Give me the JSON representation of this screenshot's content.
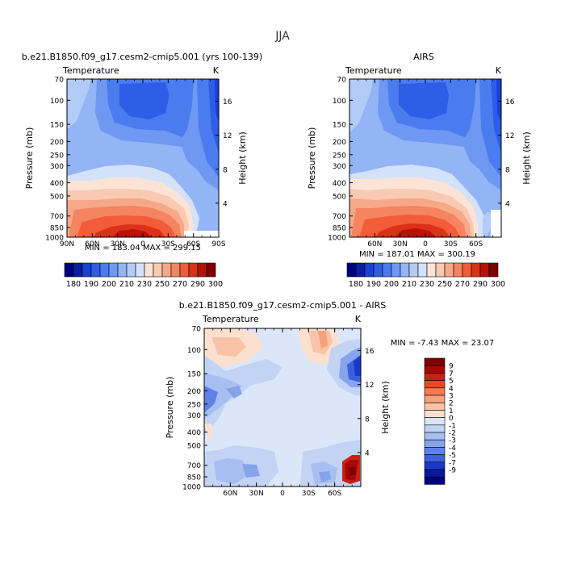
{
  "figure_title": "JJA",
  "chart_data": [
    {
      "type": "heatmap",
      "id": "model",
      "title": "b.e21.B1850.f09_g17.cesm2-cmip5.001 (yrs 100-139)",
      "left_label": "Temperature",
      "right_label": "K",
      "ylabel": "Pressure (mb)",
      "ylabel_right": "Height (km)",
      "xticks": [
        "90N",
        "60N",
        "30N",
        "0",
        "30S",
        "60S",
        "90S"
      ],
      "yticks": [
        "70",
        "100",
        "150",
        "200",
        "250",
        "300",
        "400",
        "500",
        "700",
        "850",
        "1000"
      ],
      "height_ticks": [
        "16",
        "12",
        "8",
        "4"
      ],
      "min_max_text": "MIN = 183.04   MAX = 299.15",
      "x_range": [
        90,
        -90
      ],
      "pressure_range_mb": [
        1000,
        70
      ],
      "colorbar_labels": [
        "180",
        "190",
        "200",
        "210",
        "230",
        "250",
        "270",
        "290",
        "300"
      ]
    },
    {
      "type": "heatmap",
      "id": "obs",
      "title": "AIRS",
      "left_label": "Temperature",
      "right_label": "K",
      "ylabel": "Pressure (mb)",
      "ylabel_right": "Height (km)",
      "xticks": [
        "60N",
        "30N",
        "0",
        "30S",
        "60S"
      ],
      "yticks": [
        "70",
        "100",
        "150",
        "200",
        "250",
        "300",
        "400",
        "500",
        "700",
        "850",
        "1000"
      ],
      "height_ticks": [
        "16",
        "12",
        "8",
        "4"
      ],
      "min_max_text": "MIN = 187.01   MAX = 300.19",
      "x_range": [
        90,
        -90
      ],
      "pressure_range_mb": [
        1000,
        70
      ],
      "colorbar_labels": [
        "180",
        "190",
        "200",
        "210",
        "230",
        "250",
        "270",
        "290",
        "300"
      ]
    },
    {
      "type": "heatmap",
      "id": "diff",
      "title": "b.e21.B1850.f09_g17.cesm2-cmip5.001 - AIRS",
      "left_label": "Temperature",
      "right_label": "K",
      "ylabel": "Pressure (mb)",
      "ylabel_right": "Height (km)",
      "xticks": [
        "60N",
        "30N",
        "0",
        "30S",
        "60S"
      ],
      "yticks": [
        "70",
        "100",
        "150",
        "200",
        "250",
        "300",
        "400",
        "500",
        "700",
        "850",
        "1000"
      ],
      "height_ticks": [
        "16",
        "12",
        "8",
        "4"
      ],
      "min_max_text": "MIN =  -7.43   MAX =  23.07",
      "x_range": [
        90,
        -90
      ],
      "pressure_range_mb": [
        1000,
        70
      ],
      "colorbar_labels": [
        "9",
        "7",
        "5",
        "4",
        "3",
        "2",
        "1",
        "0",
        "-1",
        "-2",
        "-3",
        "-4",
        "-5",
        "-7",
        "-9"
      ]
    }
  ],
  "colors": {
    "temp_scale": [
      "#00007f",
      "#0a1fa0",
      "#1a40d8",
      "#2e5de8",
      "#4a7cf0",
      "#6e98f2",
      "#93b4f5",
      "#b3cbf7",
      "#d3e2f9",
      "#fbe4d6",
      "#f9c9b1",
      "#f7a889",
      "#f58460",
      "#f35c38",
      "#dd3018",
      "#b81208",
      "#7f0000"
    ],
    "diff_scale": [
      "#7f0000",
      "#a50a08",
      "#cc1f10",
      "#f0451f",
      "#f47a4f",
      "#f7a07c",
      "#f9c3a8",
      "#fbe0d0",
      "#dbe6f8",
      "#c3d3f4",
      "#a7bff0",
      "#86a4ec",
      "#5f82e6",
      "#3a5fdf",
      "#1a38c8",
      "#0a18a0",
      "#00007f"
    ]
  }
}
